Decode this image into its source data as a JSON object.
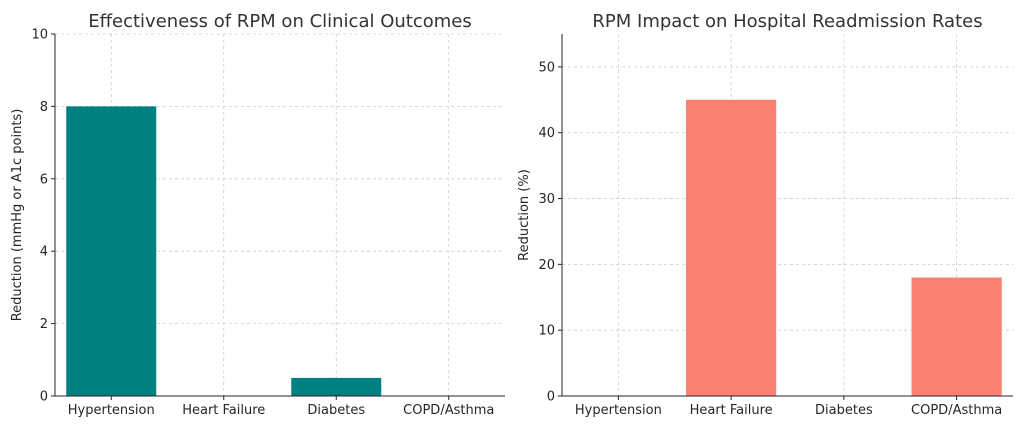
{
  "chart_data": [
    {
      "type": "bar",
      "title": "Effectiveness of RPM on Clinical Outcomes",
      "xlabel": "",
      "ylabel": "Reduction (mmHg or A1c points)",
      "categories": [
        "Hypertension",
        "Heart Failure",
        "Diabetes",
        "COPD/Asthma"
      ],
      "values": [
        8,
        0,
        0.5,
        0
      ],
      "ylim": [
        0,
        10
      ],
      "yticks": [
        0,
        2,
        4,
        6,
        8,
        10
      ],
      "color": "#008080",
      "grid": true
    },
    {
      "type": "bar",
      "title": "RPM Impact on Hospital Readmission Rates",
      "xlabel": "",
      "ylabel": "Reduction (%)",
      "categories": [
        "Hypertension",
        "Heart Failure",
        "Diabetes",
        "COPD/Asthma"
      ],
      "values": [
        0,
        45,
        0,
        18
      ],
      "ylim": [
        0,
        55
      ],
      "yticks": [
        0,
        10,
        20,
        30,
        40,
        50
      ],
      "color": "#FA8072",
      "grid": true
    }
  ]
}
